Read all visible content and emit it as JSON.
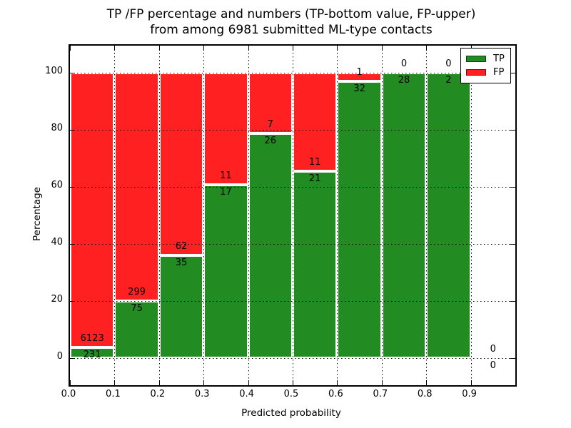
{
  "chart_data": {
    "type": "bar",
    "stacked": true,
    "title_line1": "TP /FP percentage and numbers (TP-bottom value, FP-upper)",
    "title_line2": "from among 6981 submitted ML-type contacts",
    "title": "TP /FP percentage and numbers (TP-bottom value, FP-upper)\nfrom among 6981 submitted ML-type contacts",
    "xlabel": "Predicted probability",
    "ylabel": "Percentage",
    "xlim": [
      0.0,
      1.0
    ],
    "ylim": [
      -9.5,
      109.5
    ],
    "xticks": [
      "0.0",
      "0.1",
      "0.2",
      "0.3",
      "0.4",
      "0.5",
      "0.6",
      "0.7",
      "0.8",
      "0.9"
    ],
    "xtick_values": [
      0.0,
      0.1,
      0.2,
      0.3,
      0.4,
      0.5,
      0.6,
      0.7,
      0.8,
      0.9
    ],
    "yticks": [
      "0",
      "20",
      "40",
      "60",
      "80",
      "100"
    ],
    "ytick_values": [
      0,
      20,
      40,
      60,
      80,
      100
    ],
    "grid": true,
    "grid_style": "dotted",
    "total_contacts": 6981,
    "colors": {
      "tp": "#228b22",
      "fp": "#ff2121",
      "bar_edge": "#ffffff",
      "text": "#000000"
    },
    "legend": {
      "position": "upper right",
      "entries": [
        {
          "label": "TP",
          "color": "#228b22"
        },
        {
          "label": "FP",
          "color": "#ff2121"
        }
      ]
    },
    "bins": [
      {
        "x_start": 0.0,
        "x_end": 0.1,
        "tp": 231,
        "fp": 6123
      },
      {
        "x_start": 0.1,
        "x_end": 0.2,
        "tp": 75,
        "fp": 299
      },
      {
        "x_start": 0.2,
        "x_end": 0.3,
        "tp": 35,
        "fp": 62
      },
      {
        "x_start": 0.3,
        "x_end": 0.4,
        "tp": 17,
        "fp": 11
      },
      {
        "x_start": 0.4,
        "x_end": 0.5,
        "tp": 26,
        "fp": 7
      },
      {
        "x_start": 0.5,
        "x_end": 0.6,
        "tp": 21,
        "fp": 11
      },
      {
        "x_start": 0.6,
        "x_end": 0.7,
        "tp": 32,
        "fp": 1
      },
      {
        "x_start": 0.7,
        "x_end": 0.8,
        "tp": 28,
        "fp": 0
      },
      {
        "x_start": 0.8,
        "x_end": 0.9,
        "tp": 2,
        "fp": 0
      },
      {
        "x_start": 0.9,
        "x_end": 1.0,
        "tp": 0,
        "fp": 0,
        "empty": true
      }
    ]
  }
}
